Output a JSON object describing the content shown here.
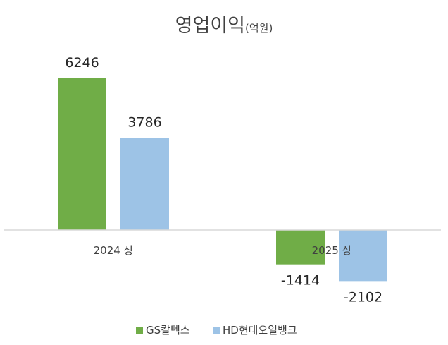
{
  "chart_data": {
    "type": "bar",
    "title": "영업이익",
    "title_unit": "(억원)",
    "categories": [
      "2024 상",
      "2025 상"
    ],
    "series": [
      {
        "name": "GS칼텍스",
        "values": [
          6246,
          -1414
        ],
        "color": "#70AD47"
      },
      {
        "name": "HD현대오일뱅크",
        "values": [
          3786,
          -2102
        ],
        "color": "#9DC3E6"
      }
    ],
    "ylim": [
      -3000,
      7000
    ],
    "grid": false,
    "legend": "bottom",
    "axis_color": "#D9D9D9"
  }
}
